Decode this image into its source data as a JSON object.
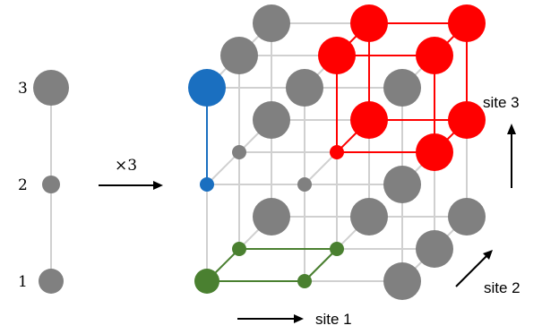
{
  "chain": {
    "levels": [
      {
        "label": "1",
        "size": "medium"
      },
      {
        "label": "2",
        "size": "small"
      },
      {
        "label": "3",
        "size": "large"
      }
    ]
  },
  "operator": "×3",
  "axes": {
    "site1": "site 1",
    "site2": "site 2",
    "site3": "site 3"
  },
  "colors": {
    "grid": "#d0d0d0",
    "node": "#808080",
    "blue": "#1a6fc0",
    "red": "#ff0000",
    "green": "#4a8030"
  },
  "highlights": {
    "blue": "chain along site 3 (levels 2–3)",
    "red": "cube of levels 2–3 on all sites",
    "green": "square in site 1 – site 2 plane at site 3 = 1"
  }
}
